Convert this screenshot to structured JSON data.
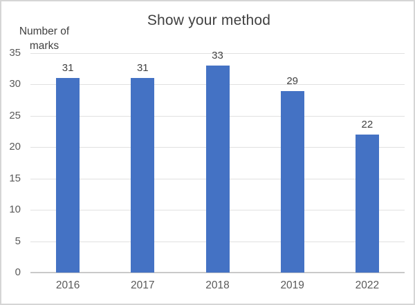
{
  "chart_data": {
    "type": "bar",
    "title": "Show your method",
    "ylabel": "Number of marks",
    "xlabel": "",
    "categories": [
      "2016",
      "2017",
      "2018",
      "2019",
      "2022"
    ],
    "values": [
      31,
      31,
      33,
      29,
      22
    ],
    "ylim": [
      0,
      35
    ],
    "ytick_step": 5,
    "yticks": [
      0,
      5,
      10,
      15,
      20,
      25,
      30,
      35
    ],
    "grid": true,
    "data_labels": true,
    "legend": "none",
    "colors": {
      "bar_fill": "#4472C4",
      "gridline": "#e0e0e0",
      "axis_line": "#c9c9c9",
      "title_text": "#404040",
      "data_label_text": "#404040",
      "tick_text": "#595959",
      "frame_border": "#d5d5d5"
    }
  }
}
